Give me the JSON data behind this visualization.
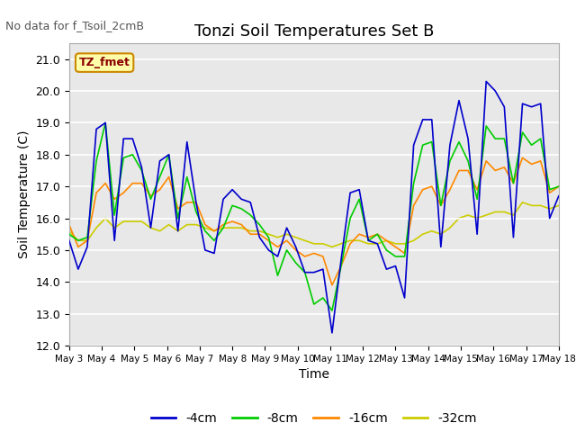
{
  "title": "Tonzi Soil Temperatures Set B",
  "xlabel": "Time",
  "ylabel": "Soil Temperature (C)",
  "no_data_text": "No data for f_Tsoil_2cmB",
  "tz_fmet_label": "TZ_fmet",
  "ylim": [
    12.0,
    21.5
  ],
  "yticks": [
    12.0,
    13.0,
    14.0,
    15.0,
    16.0,
    17.0,
    18.0,
    19.0,
    20.0,
    21.0
  ],
  "bg_color": "#ffffff",
  "plot_bg": "#e8e8e8",
  "legend_labels": [
    "-4cm",
    "-8cm",
    "-16cm",
    "-32cm"
  ],
  "legend_colors": [
    "#0000cc",
    "#00cc00",
    "#ff8800",
    "#cccc00"
  ],
  "colors": {
    "4cm": "#0000cc",
    "8cm": "#00cc00",
    "16cm": "#ff8800",
    "32cm": "#cccc00"
  },
  "x_tick_labels": [
    "May 3",
    "May 4",
    "May 5",
    "May 6",
    "May 7",
    "May 8",
    "May 9",
    "May 10",
    "May 11",
    "May 12",
    "May 13",
    "May 14",
    "May 15",
    "May 16",
    "May 17",
    "May 18"
  ],
  "x_ticks": [
    0,
    1,
    2,
    3,
    4,
    5,
    6,
    7,
    8,
    9,
    10,
    11,
    12,
    13,
    14,
    15
  ],
  "d4cm": [
    15.3,
    14.4,
    15.1,
    18.8,
    19.0,
    15.3,
    18.5,
    18.5,
    17.6,
    15.7,
    17.8,
    18.0,
    15.6,
    18.4,
    16.5,
    15.0,
    14.9,
    16.6,
    16.9,
    16.6,
    16.5,
    15.4,
    15.0,
    14.8,
    15.7,
    15.1,
    14.3,
    14.3,
    14.4,
    12.4,
    14.7,
    16.8,
    16.9,
    15.3,
    15.2,
    14.4,
    14.5,
    13.5,
    18.3,
    19.1,
    19.1,
    15.1,
    18.3,
    19.7,
    18.5,
    15.5,
    20.3,
    20.0,
    19.5,
    15.4,
    19.6,
    19.5,
    19.6,
    16.0,
    16.7
  ],
  "d8cm": [
    15.5,
    15.3,
    15.4,
    17.8,
    19.0,
    16.1,
    17.9,
    18.0,
    17.5,
    16.6,
    17.3,
    18.0,
    16.0,
    17.3,
    16.2,
    15.6,
    15.3,
    15.7,
    16.4,
    16.3,
    16.1,
    15.8,
    15.4,
    14.2,
    15.0,
    14.6,
    14.3,
    13.3,
    13.5,
    13.1,
    14.5,
    16.0,
    16.6,
    15.3,
    15.5,
    15.0,
    14.8,
    14.8,
    17.1,
    18.3,
    18.4,
    16.4,
    17.8,
    18.4,
    17.8,
    16.6,
    18.9,
    18.5,
    18.5,
    17.1,
    18.7,
    18.3,
    18.5,
    16.9,
    17.0
  ],
  "d16cm": [
    15.8,
    15.1,
    15.3,
    16.8,
    17.1,
    16.6,
    16.8,
    17.1,
    17.1,
    16.7,
    16.9,
    17.3,
    16.3,
    16.5,
    16.5,
    15.8,
    15.6,
    15.8,
    15.9,
    15.8,
    15.5,
    15.5,
    15.3,
    15.1,
    15.3,
    15.0,
    14.8,
    14.9,
    14.8,
    13.9,
    14.5,
    15.2,
    15.5,
    15.4,
    15.5,
    15.3,
    15.1,
    14.9,
    16.4,
    16.9,
    17.0,
    16.4,
    16.9,
    17.5,
    17.5,
    16.9,
    17.8,
    17.5,
    17.6,
    17.1,
    17.9,
    17.7,
    17.8,
    16.8,
    17.0
  ],
  "d32cm": [
    15.6,
    15.3,
    15.3,
    15.7,
    16.0,
    15.7,
    15.9,
    15.9,
    15.9,
    15.7,
    15.6,
    15.8,
    15.6,
    15.8,
    15.8,
    15.7,
    15.6,
    15.7,
    15.7,
    15.7,
    15.6,
    15.6,
    15.5,
    15.4,
    15.5,
    15.4,
    15.3,
    15.2,
    15.2,
    15.1,
    15.2,
    15.3,
    15.3,
    15.2,
    15.2,
    15.3,
    15.2,
    15.2,
    15.3,
    15.5,
    15.6,
    15.5,
    15.7,
    16.0,
    16.1,
    16.0,
    16.1,
    16.2,
    16.2,
    16.1,
    16.5,
    16.4,
    16.4,
    16.3,
    16.4
  ]
}
